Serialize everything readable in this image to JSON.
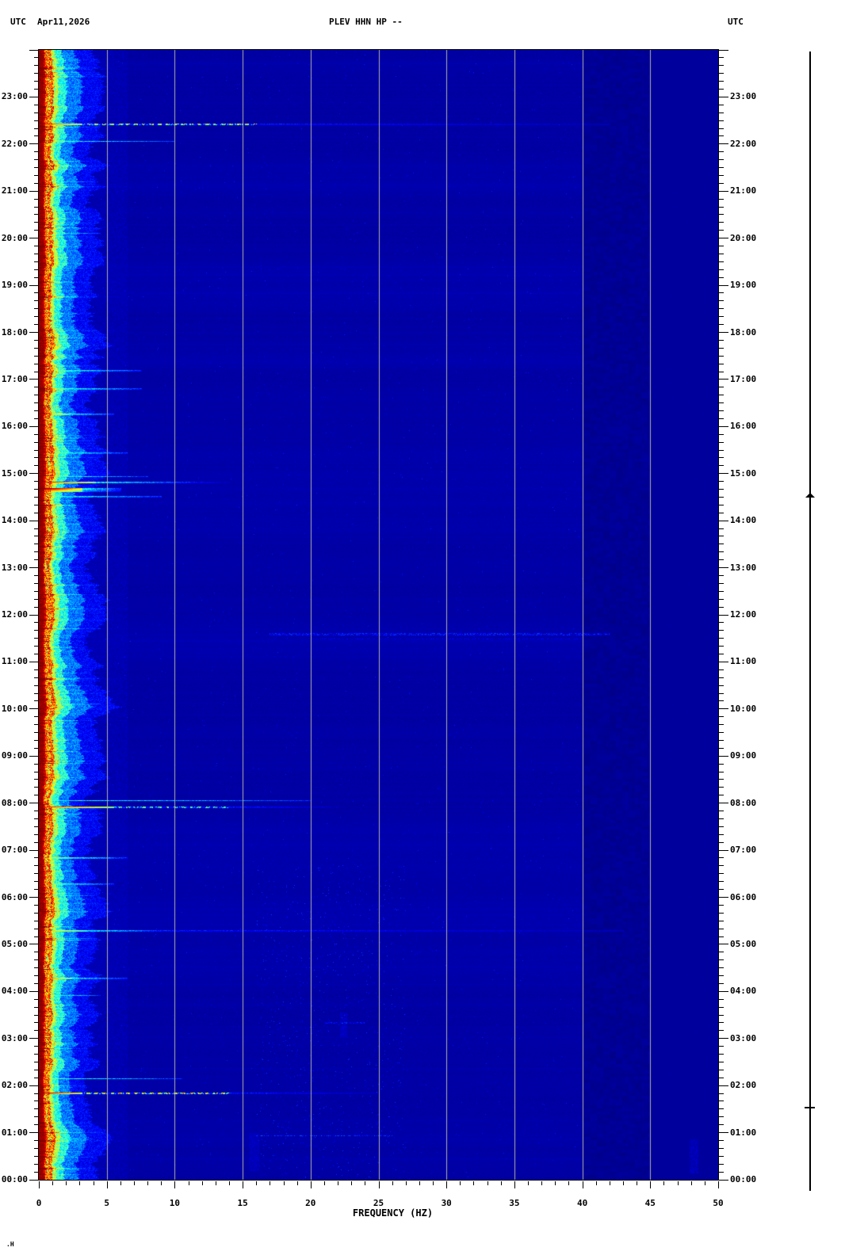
{
  "header": {
    "utc_left": "UTC",
    "date": "Apr11,2026",
    "title": "PLEV HHN HP --",
    "utc_right": "UTC"
  },
  "footer": {
    "corner_glyph": ".H"
  },
  "axes": {
    "x": {
      "label": "FREQUENCY (HZ)",
      "min": 0,
      "max": 50,
      "major_tick_step": 5,
      "minor_tick_step": 1,
      "major_tick_labels": [
        "0",
        "5",
        "10",
        "15",
        "20",
        "25",
        "30",
        "35",
        "40",
        "45",
        "50"
      ]
    },
    "y": {
      "unit": "UTC",
      "minor_tick_minutes": 10,
      "hour_labels": [
        "23:00",
        "22:00",
        "21:00",
        "20:00",
        "19:00",
        "18:00",
        "17:00",
        "16:00",
        "15:00",
        "14:00",
        "13:00",
        "12:00",
        "11:00",
        "10:00",
        "09:00",
        "08:00",
        "07:00",
        "06:00",
        "05:00",
        "04:00",
        "03:00",
        "02:00",
        "01:00",
        "00:00"
      ]
    }
  },
  "chart_data": {
    "type": "heatmap",
    "title": "PLEV HHN HP --",
    "date": "Apr11,2026",
    "xlabel": "FREQUENCY (HZ)",
    "x_range_hz": [
      0,
      50
    ],
    "y_axis": "time of day UTC, 00:00 at bottom to 24:00 at top, hourly labels",
    "colormap": "jet",
    "grid_hz": [
      5,
      10,
      15,
      20,
      25,
      30,
      35,
      40,
      45
    ],
    "colors": {
      "page_background": "#ffffff",
      "base_field": "#00009e",
      "grid": "#b2b2a8",
      "microseism_core": "#9e0000",
      "text": "#000000"
    },
    "noise_bands": [
      {
        "name": "microseism-band",
        "f_hz": [
          0,
          3
        ],
        "value": 0.95,
        "description": "continuous strong energy: dark-red core 0-0.5 Hz, yellow/green/cyan speckle out to ~3 Hz, width varies over the day"
      },
      {
        "name": "mottled-band",
        "f_hz": [
          40,
          45
        ],
        "value": 0.02,
        "description": "slightly darker mottled blue texture"
      },
      {
        "name": "smooth-band",
        "f_hz": [
          45,
          50
        ],
        "value": 0.028,
        "description": "uniform dark blue"
      }
    ],
    "events": [
      {
        "t": 23.28,
        "f1": 1.2,
        "f2": 3.0,
        "v": 0.5,
        "rows": 1
      },
      {
        "t": 22.43,
        "f1": 3.0,
        "f2": 16.0,
        "f3": 42.0,
        "v": 0.88,
        "rows": 2,
        "dash": true,
        "dashv": 0.6
      },
      {
        "t": 22.06,
        "f1": 1.8,
        "f2": 10.0,
        "v": 0.55,
        "rows": 1
      },
      {
        "t": 21.2,
        "f1": 1.5,
        "f2": 4.0,
        "v": 0.5,
        "rows": 1
      },
      {
        "t": 20.55,
        "f1": 1.2,
        "f2": 3.5,
        "v": 0.45,
        "rows": 1
      },
      {
        "t": 20.12,
        "f1": 1.5,
        "f2": 4.5,
        "v": 0.5,
        "rows": 1
      },
      {
        "t": 19.38,
        "f1": 1.2,
        "f2": 3.5,
        "v": 0.45,
        "rows": 1
      },
      {
        "t": 18.4,
        "f1": 1.0,
        "f2": 3.0,
        "v": 0.4,
        "rows": 1
      },
      {
        "t": 17.2,
        "f1": 2.2,
        "f2": 7.5,
        "v": 0.62,
        "rows": 2
      },
      {
        "t": 16.82,
        "f1": 2.4,
        "f2": 7.5,
        "v": 0.6,
        "rows": 2
      },
      {
        "t": 16.28,
        "f1": 2.2,
        "f2": 5.5,
        "v": 0.78,
        "rows": 2
      },
      {
        "t": 15.45,
        "f1": 2.2,
        "f2": 6.5,
        "v": 0.6,
        "rows": 2
      },
      {
        "t": 14.95,
        "f1": 2.0,
        "f2": 8.0,
        "v": 0.6,
        "rows": 1
      },
      {
        "t": 14.82,
        "f1": 4.2,
        "f2": 11.0,
        "f3": 14.0,
        "v": 0.88,
        "rows": 2
      },
      {
        "t": 14.7,
        "f1": 3.2,
        "f2": 6.0,
        "v": 1.0,
        "rows": 5
      },
      {
        "t": 14.52,
        "f1": 1.8,
        "f2": 9.0,
        "v": 0.6,
        "rows": 2
      },
      {
        "t": 13.9,
        "f1": 1.0,
        "f2": 2.5,
        "v": 0.4,
        "rows": 1
      },
      {
        "t": 12.05,
        "f1": 1.2,
        "f2": 3.0,
        "v": 0.45,
        "rows": 1
      },
      {
        "t": 11.62,
        "band": [
          17,
          42
        ],
        "v": 0.14,
        "rows": 3
      },
      {
        "t": 11.5,
        "band": [
          20,
          40
        ],
        "v": 0.1,
        "rows": 1
      },
      {
        "t": 10.12,
        "f1": 2.0,
        "f2": 4.5,
        "v": 0.62,
        "rows": 2
      },
      {
        "t": 9.35,
        "f1": 1.2,
        "f2": 3.0,
        "v": 0.45,
        "rows": 1
      },
      {
        "t": 8.06,
        "f1": 2.2,
        "f2": 20.0,
        "v": 0.5,
        "rows": 1
      },
      {
        "t": 7.92,
        "f1": 5.5,
        "f2": 14.0,
        "f3": 22.0,
        "v": 0.85,
        "rows": 2,
        "dash": true,
        "dashv": 0.5
      },
      {
        "t": 7.55,
        "f1": 1.2,
        "f2": 3.0,
        "v": 0.45,
        "rows": 1
      },
      {
        "t": 6.85,
        "f1": 2.5,
        "f2": 6.5,
        "v": 0.65,
        "rows": 2
      },
      {
        "t": 6.3,
        "f1": 2.2,
        "f2": 5.5,
        "v": 0.6,
        "rows": 2
      },
      {
        "t": 6.05,
        "f1": 1.5,
        "f2": 4.0,
        "v": 0.5,
        "rows": 1
      },
      {
        "t": 5.3,
        "f1": 3.5,
        "f2": 9.0,
        "f3": 43.0,
        "v": 0.7,
        "rows": 2
      },
      {
        "t": 5.14,
        "f1": 1.5,
        "f2": 4.0,
        "v": 0.55,
        "rows": 1
      },
      {
        "t": 4.3,
        "f1": 2.4,
        "f2": 6.5,
        "v": 0.8,
        "rows": 2
      },
      {
        "t": 3.92,
        "f1": 2.0,
        "f2": 4.5,
        "v": 0.55,
        "rows": 1
      },
      {
        "t": 3.35,
        "band": [
          21,
          24
        ],
        "v": 0.12,
        "rows": 2
      },
      {
        "t": 2.15,
        "f1": 2.5,
        "f2": 10.5,
        "v": 0.55,
        "rows": 1
      },
      {
        "t": 1.85,
        "f1": 3.2,
        "f2": 14.0,
        "f3": 25.0,
        "v": 0.95,
        "rows": 2,
        "dash": true,
        "dashv": 0.65
      },
      {
        "t": 0.95,
        "band": [
          16,
          26
        ],
        "v": 0.16,
        "rows": 1
      },
      {
        "t": 0.88,
        "f1": 1.5,
        "f2": 4.0,
        "v": 0.5,
        "rows": 1
      },
      {
        "t": 0.6,
        "f1": 1.2,
        "f2": 3.0,
        "v": 0.45,
        "rows": 1
      }
    ],
    "vertical_smudges": [
      {
        "f": 48.2,
        "t": [
          0.15,
          0.85
        ],
        "v": 0.05,
        "w": 0.6
      },
      {
        "f": 15.8,
        "t": [
          0.2,
          1.0
        ],
        "v": 0.04,
        "w": 0.7
      },
      {
        "f": 22.4,
        "t": [
          3.05,
          3.55
        ],
        "v": 0.05,
        "w": 0.5
      }
    ],
    "marker_line": {
      "arrow_time_utc": "14:29",
      "bar_time_utc": "01:32"
    }
  }
}
